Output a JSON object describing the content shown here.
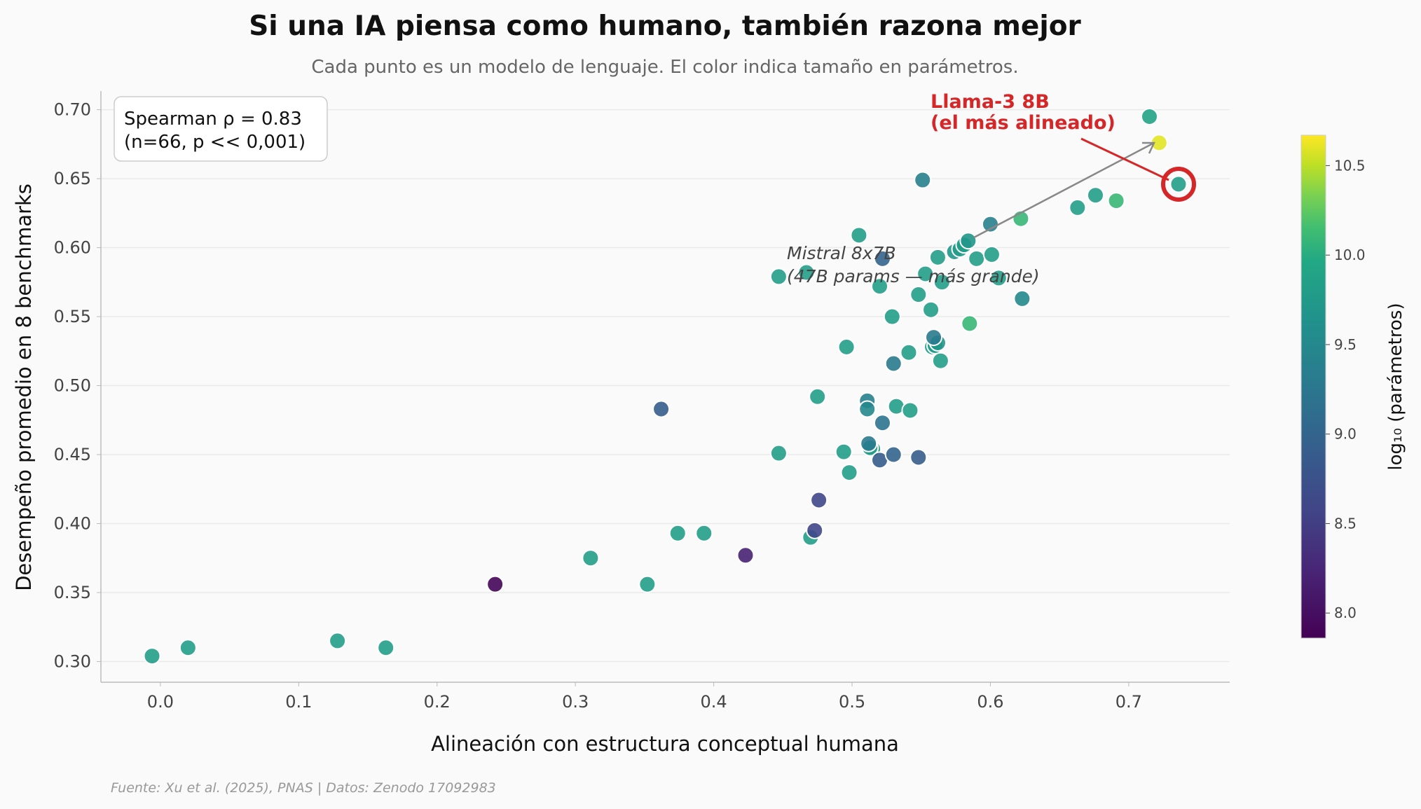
{
  "chart_data": {
    "type": "scatter",
    "title": "Si una IA piensa como humano, también razona mejor",
    "subtitle": "Cada punto es un modelo de lenguaje. El color indica tamaño en parámetros.",
    "xlabel": "Alineación con estructura conceptual humana",
    "ylabel": "Desempeño promedio en 8 benchmarks",
    "xlim": [
      -0.043,
      0.773
    ],
    "ylim": [
      0.285,
      0.7135
    ],
    "xticks": [
      "0.0",
      "0.1",
      "0.2",
      "0.3",
      "0.4",
      "0.5",
      "0.6",
      "0.7"
    ],
    "yticks": [
      "0.30",
      "0.35",
      "0.40",
      "0.45",
      "0.50",
      "0.55",
      "0.60",
      "0.65",
      "0.70"
    ],
    "grid": "horizontal",
    "colorbar": {
      "label": "log₁₀ (parámetros)",
      "colormap": "viridis",
      "range": [
        7.86,
        10.67
      ],
      "ticks": [
        "8.0",
        "8.5",
        "9.0",
        "9.5",
        "10.0",
        "10.5"
      ]
    },
    "stats_box": {
      "line1": "Spearman ρ = 0.83",
      "line2": "(n=66, p << 0,001)"
    },
    "annotations": {
      "highlight_line1": "Llama-3 8B",
      "highlight_line2": "(el más alineado)",
      "highlight_color": "#d62728",
      "mistral_line1": "Mistral 8x7B",
      "mistral_line2": "(47B params — más grande)"
    },
    "source": "Fuente: Xu et al. (2025), PNAS | Datos: Zenodo 17092983",
    "points": [
      [
        -0.006,
        0.304,
        9.8
      ],
      [
        0.02,
        0.31,
        9.8
      ],
      [
        0.128,
        0.315,
        9.8
      ],
      [
        0.163,
        0.31,
        9.8
      ],
      [
        0.242,
        0.356,
        7.9
      ],
      [
        0.311,
        0.375,
        9.8
      ],
      [
        0.352,
        0.356,
        9.8
      ],
      [
        0.374,
        0.393,
        9.8
      ],
      [
        0.393,
        0.393,
        9.8
      ],
      [
        0.423,
        0.377,
        8.2
      ],
      [
        0.362,
        0.483,
        8.9
      ],
      [
        0.447,
        0.451,
        9.8
      ],
      [
        0.447,
        0.579,
        9.8
      ],
      [
        0.467,
        0.582,
        9.8
      ],
      [
        0.47,
        0.39,
        9.8
      ],
      [
        0.473,
        0.395,
        8.6
      ],
      [
        0.476,
        0.417,
        8.6
      ],
      [
        0.475,
        0.492,
        9.8
      ],
      [
        0.494,
        0.452,
        9.8
      ],
      [
        0.498,
        0.437,
        9.8
      ],
      [
        0.496,
        0.528,
        9.8
      ],
      [
        0.505,
        0.609,
        9.8
      ],
      [
        0.511,
        0.489,
        9.4
      ],
      [
        0.511,
        0.483,
        9.5
      ],
      [
        0.515,
        0.454,
        9.8
      ],
      [
        0.513,
        0.455,
        9.8
      ],
      [
        0.512,
        0.458,
        9.3
      ],
      [
        0.52,
        0.446,
        8.9
      ],
      [
        0.522,
        0.473,
        9.2
      ],
      [
        0.52,
        0.572,
        9.8
      ],
      [
        0.522,
        0.592,
        9.0
      ],
      [
        0.529,
        0.55,
        9.8
      ],
      [
        0.53,
        0.516,
        9.3
      ],
      [
        0.53,
        0.45,
        9.0
      ],
      [
        0.532,
        0.485,
        9.8
      ],
      [
        0.541,
        0.524,
        9.8
      ],
      [
        0.542,
        0.482,
        9.8
      ],
      [
        0.548,
        0.448,
        8.9
      ],
      [
        0.548,
        0.566,
        9.8
      ],
      [
        0.551,
        0.649,
        9.4
      ],
      [
        0.553,
        0.581,
        9.8
      ],
      [
        0.557,
        0.555,
        9.8
      ],
      [
        0.558,
        0.528,
        9.8
      ],
      [
        0.56,
        0.529,
        9.8
      ],
      [
        0.562,
        0.531,
        9.7
      ],
      [
        0.559,
        0.535,
        9.3
      ],
      [
        0.564,
        0.518,
        9.8
      ],
      [
        0.562,
        0.593,
        9.8
      ],
      [
        0.565,
        0.575,
        9.8
      ],
      [
        0.574,
        0.597,
        9.7
      ],
      [
        0.578,
        0.599,
        9.8
      ],
      [
        0.581,
        0.602,
        9.8
      ],
      [
        0.584,
        0.605,
        9.7
      ],
      [
        0.585,
        0.545,
        10.1
      ],
      [
        0.59,
        0.592,
        9.8
      ],
      [
        0.6,
        0.617,
        9.4
      ],
      [
        0.601,
        0.595,
        9.8
      ],
      [
        0.606,
        0.578,
        9.8
      ],
      [
        0.622,
        0.621,
        10.1
      ],
      [
        0.623,
        0.563,
        9.5
      ],
      [
        0.663,
        0.629,
        9.8
      ],
      [
        0.676,
        0.638,
        9.8
      ],
      [
        0.691,
        0.634,
        10.1
      ],
      [
        0.715,
        0.695,
        9.9
      ],
      [
        0.722,
        0.676,
        10.6
      ],
      [
        0.736,
        0.646,
        9.8
      ]
    ]
  }
}
